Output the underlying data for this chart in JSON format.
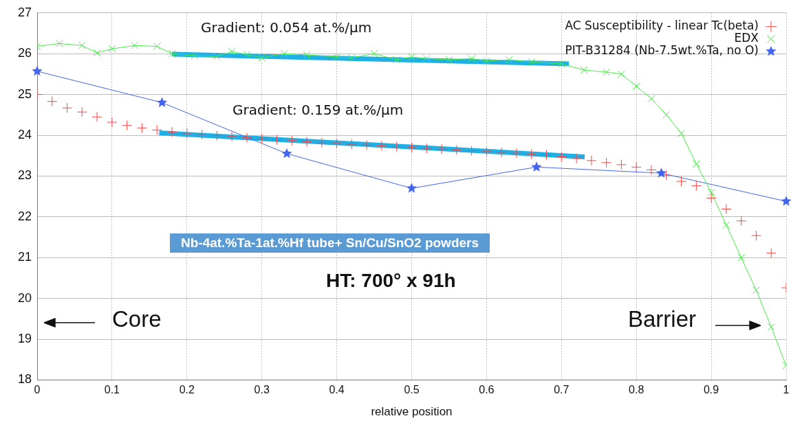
{
  "chart_data": {
    "type": "scatter",
    "xlabel": "relative position",
    "xlim": [
      0,
      1
    ],
    "xticks": [
      0,
      0.1,
      0.2,
      0.3,
      0.4,
      0.5,
      0.6,
      0.7,
      0.8,
      0.9,
      1
    ],
    "ylim": [
      18,
      27
    ],
    "yticks": [
      18,
      19,
      20,
      21,
      22,
      23,
      24,
      25,
      26,
      27
    ],
    "grid": true,
    "legend": "top right",
    "annotations": [
      "Gradient: 0.054 at.%/µm",
      "Gradient: 0.159 at.%/µm",
      "Nb-4at.%Ta-1at.%Hf tube+ Sn/Cu/SnO2 powders",
      "HT: 700° x 91h",
      "Core",
      "Barrier"
    ],
    "series": [
      {
        "name": "AC Susceptibility - linear Tc(beta)",
        "color": "#ff4444",
        "marker": "cross",
        "x": [
          0,
          0.02,
          0.04,
          0.06,
          0.08,
          0.1,
          0.12,
          0.14,
          0.16,
          0.18,
          0.2,
          0.22,
          0.24,
          0.26,
          0.28,
          0.3,
          0.32,
          0.34,
          0.36,
          0.38,
          0.4,
          0.42,
          0.44,
          0.46,
          0.48,
          0.5,
          0.52,
          0.54,
          0.56,
          0.58,
          0.6,
          0.62,
          0.64,
          0.66,
          0.68,
          0.7,
          0.72,
          0.74,
          0.76,
          0.78,
          0.8,
          0.82,
          0.84,
          0.86,
          0.88,
          0.9,
          0.92,
          0.94,
          0.96,
          0.98,
          1
        ],
        "values": [
          25.0,
          24.83,
          24.67,
          24.57,
          24.45,
          24.32,
          24.24,
          24.18,
          24.13,
          24.08,
          24.05,
          24.02,
          23.99,
          23.97,
          23.94,
          23.92,
          23.89,
          23.87,
          23.84,
          23.82,
          23.8,
          23.78,
          23.76,
          23.74,
          23.72,
          23.7,
          23.68,
          23.66,
          23.64,
          23.62,
          23.6,
          23.58,
          23.56,
          23.54,
          23.52,
          23.47,
          23.43,
          23.38,
          23.33,
          23.28,
          23.22,
          23.15,
          23.02,
          22.87,
          22.76,
          22.46,
          22.19,
          21.9,
          21.54,
          21.11,
          20.26
        ]
      },
      {
        "type": "line",
        "name": "EDX",
        "color": "#44ee44",
        "marker": "x",
        "line_style": "solid",
        "x": [
          0,
          0.03,
          0.06,
          0.08,
          0.1,
          0.13,
          0.16,
          0.18,
          0.21,
          0.24,
          0.26,
          0.28,
          0.3,
          0.33,
          0.36,
          0.4,
          0.42,
          0.45,
          0.48,
          0.5,
          0.52,
          0.55,
          0.58,
          0.6,
          0.63,
          0.66,
          0.7,
          0.73,
          0.76,
          0.78,
          0.8,
          0.82,
          0.84,
          0.86,
          0.88,
          0.9,
          0.92,
          0.94,
          0.96,
          0.98,
          1
        ],
        "values": [
          26.18,
          26.25,
          26.2,
          26.02,
          26.12,
          26.2,
          26.18,
          26.0,
          25.95,
          25.93,
          26.05,
          25.98,
          25.9,
          26.0,
          25.97,
          25.92,
          25.9,
          26.0,
          25.85,
          25.92,
          25.88,
          25.85,
          25.88,
          25.82,
          25.85,
          25.8,
          25.75,
          25.6,
          25.55,
          25.5,
          25.2,
          24.9,
          24.5,
          24.05,
          23.3,
          22.6,
          21.8,
          21.0,
          20.2,
          19.3,
          18.35
        ]
      },
      {
        "type": "line",
        "name": "PIT-B31284 (Nb-7.5wt.%Ta, no O)",
        "color": "#4466ee",
        "marker": "star",
        "line_style": "solid",
        "x": [
          0,
          0.1667,
          0.3333,
          0.5,
          0.6667,
          0.8333,
          1
        ],
        "values": [
          25.57,
          24.8,
          23.55,
          22.7,
          23.22,
          23.07,
          22.38
        ]
      },
      {
        "type": "line",
        "color": "#1fb0e6",
        "x": [
          0.18,
          0.71
        ],
        "values": [
          25.99,
          25.75
        ]
      },
      {
        "type": "line",
        "color": "#1fb0e6",
        "x": [
          0.163,
          0.731
        ],
        "values": [
          24.06,
          23.47
        ]
      }
    ]
  }
}
